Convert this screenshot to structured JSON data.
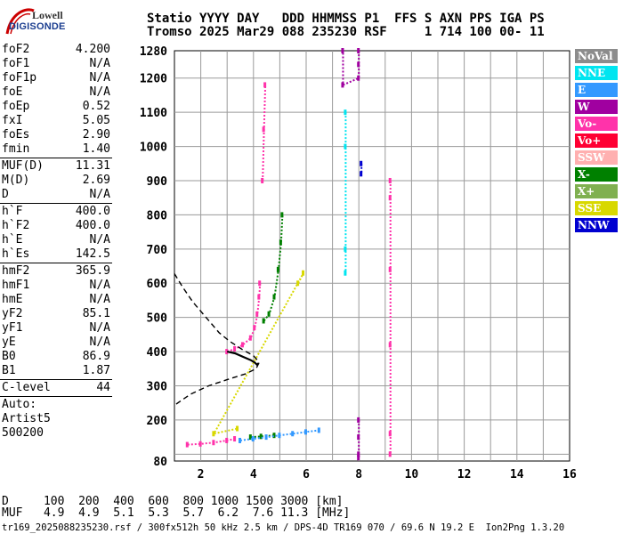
{
  "logo": {
    "line1": "Lowell",
    "line2": "DIGISONDE"
  },
  "header": {
    "line1": "Statio YYYY DAY   DDD HHMMSS P1  FFS S AXN PPS IGA PS",
    "line2": "Tromso 2025 Mar29 088 235230 RSF     1 714 100 00- 11"
  },
  "params": [
    {
      "label": "foF2",
      "value": "4.200"
    },
    {
      "label": "foF1",
      "value": "N/A"
    },
    {
      "label": "foF1p",
      "value": "N/A"
    },
    {
      "label": "foE",
      "value": "N/A"
    },
    {
      "label": "foEp",
      "value": "0.52"
    },
    {
      "label": "fxI",
      "value": "5.05"
    },
    {
      "label": "foEs",
      "value": "2.90"
    },
    {
      "label": "fmin",
      "value": "1.40"
    },
    {
      "sep": true
    },
    {
      "label": "MUF(D)",
      "value": "11.31"
    },
    {
      "label": "M(D)",
      "value": "2.69"
    },
    {
      "label": "D",
      "value": "N/A"
    },
    {
      "sep": true
    },
    {
      "label": "h`F",
      "value": "400.0"
    },
    {
      "label": "h`F2",
      "value": "400.0"
    },
    {
      "label": "h`E",
      "value": "N/A"
    },
    {
      "label": "h`Es",
      "value": "142.5"
    },
    {
      "sep": true
    },
    {
      "label": "hmF2",
      "value": "365.9"
    },
    {
      "label": "hmF1",
      "value": "N/A"
    },
    {
      "label": "hmE",
      "value": "N/A"
    },
    {
      "label": "yF2",
      "value": "85.1"
    },
    {
      "label": "yF1",
      "value": "N/A"
    },
    {
      "label": "yE",
      "value": "N/A"
    },
    {
      "label": "B0",
      "value": "86.9"
    },
    {
      "label": "B1",
      "value": "1.87"
    },
    {
      "sep": true
    },
    {
      "label": "C-level",
      "value": "44"
    },
    {
      "sep": true
    },
    {
      "text": "Auto:"
    },
    {
      "text": "Artist5"
    },
    {
      "text": "500200"
    }
  ],
  "legend": [
    {
      "label": "NoVal",
      "color": "#8c8c8c"
    },
    {
      "label": "NNE",
      "color": "#00e5f0"
    },
    {
      "label": "E",
      "color": "#3399ff"
    },
    {
      "label": "W",
      "color": "#a000a0"
    },
    {
      "label": "Vo-",
      "color": "#ff33aa"
    },
    {
      "label": "Vo+",
      "color": "#ff0033"
    },
    {
      "label": "SSW",
      "color": "#ffb0b0"
    },
    {
      "label": "X-",
      "color": "#008000"
    },
    {
      "label": "X+",
      "color": "#80b050"
    },
    {
      "label": "SSE",
      "color": "#d8d800"
    },
    {
      "label": "NNW",
      "color": "#0000d0"
    }
  ],
  "bottom": {
    "line1": "D     100  200  400  600  800 1000 1500 3000 [km]",
    "line2": "MUF   4.9  4.9  5.1  5.3  5.7  6.2  7.6 11.3 [MHz]",
    "line3": "tr169_2025088235230.rsf / 300fx512h 50 kHz 2.5 km / DPS-4D TR169 070 / 69.6 N 19.2 E  Ion2Png 1.3.20"
  },
  "chart_data": {
    "type": "scatter",
    "xlim": [
      1,
      16
    ],
    "ylim": [
      80,
      1280
    ],
    "x_ticks": [
      2,
      4,
      6,
      8,
      10,
      12,
      14,
      16
    ],
    "y_ticks": [
      80,
      200,
      300,
      400,
      500,
      600,
      700,
      800,
      900,
      1000,
      1100,
      1200,
      1280
    ],
    "grid": true,
    "profile": {
      "solid": [
        [
          3.0,
          400
        ],
        [
          3.3,
          395
        ],
        [
          3.6,
          385
        ],
        [
          3.9,
          375
        ],
        [
          4.05,
          368
        ],
        [
          4.13,
          362
        ],
        [
          4.2,
          366
        ]
      ],
      "dashed": [
        [
          1.0,
          628
        ],
        [
          1.3,
          590
        ],
        [
          1.7,
          545
        ],
        [
          2.2,
          500
        ],
        [
          2.7,
          455
        ],
        [
          3.1,
          430
        ],
        [
          3.6,
          405
        ],
        [
          4.0,
          388
        ],
        [
          4.15,
          375
        ],
        [
          4.2,
          366
        ],
        [
          4.1,
          350
        ],
        [
          3.7,
          335
        ],
        [
          3.0,
          318
        ],
        [
          2.3,
          300
        ],
        [
          1.6,
          275
        ],
        [
          1.0,
          243
        ]
      ]
    },
    "echo_traces": [
      {
        "series": "Vo-",
        "points": [
          [
            3.0,
            400
          ],
          [
            3.3,
            408
          ],
          [
            3.6,
            420
          ],
          [
            3.9,
            440
          ],
          [
            4.05,
            470
          ],
          [
            4.15,
            510
          ],
          [
            4.22,
            560
          ],
          [
            4.25,
            600
          ]
        ]
      },
      {
        "series": "Vo-",
        "points": [
          [
            1.5,
            128
          ],
          [
            2.0,
            130
          ],
          [
            2.5,
            134
          ],
          [
            3.0,
            140
          ],
          [
            3.3,
            145
          ]
        ]
      },
      {
        "series": "Vo-",
        "points": [
          [
            4.35,
            900
          ],
          [
            4.4,
            1050
          ],
          [
            4.45,
            1180
          ]
        ]
      },
      {
        "series": "X-",
        "points": [
          [
            4.4,
            490
          ],
          [
            4.6,
            510
          ],
          [
            4.8,
            560
          ],
          [
            4.95,
            640
          ],
          [
            5.05,
            720
          ],
          [
            5.1,
            800
          ]
        ]
      },
      {
        "series": "X-",
        "points": [
          [
            3.9,
            150
          ],
          [
            4.3,
            152
          ],
          [
            4.8,
            155
          ]
        ]
      },
      {
        "series": "E",
        "points": [
          [
            3.5,
            140
          ],
          [
            4.0,
            145
          ],
          [
            4.5,
            150
          ],
          [
            5.0,
            155
          ],
          [
            5.5,
            160
          ],
          [
            6.0,
            165
          ],
          [
            6.5,
            170
          ]
        ]
      },
      {
        "series": "NNE",
        "points": [
          [
            7.5,
            1100
          ],
          [
            7.5,
            1000
          ],
          [
            7.5,
            700
          ],
          [
            7.5,
            630
          ]
        ]
      },
      {
        "series": "W",
        "points": [
          [
            8.0,
            200
          ],
          [
            8.0,
            150
          ],
          [
            8.0,
            100
          ],
          [
            8.0,
            90
          ]
        ]
      },
      {
        "series": "W",
        "points": [
          [
            8.0,
            1280
          ],
          [
            8.0,
            1240
          ],
          [
            8.0,
            1200
          ],
          [
            7.4,
            1180
          ],
          [
            7.4,
            1280
          ]
        ]
      },
      {
        "series": "Vo-",
        "points": [
          [
            9.2,
            900
          ],
          [
            9.2,
            850
          ],
          [
            9.2,
            640
          ],
          [
            9.2,
            420
          ],
          [
            9.2,
            160
          ],
          [
            9.2,
            100
          ]
        ]
      },
      {
        "series": "NNW",
        "points": [
          [
            8.1,
            950
          ],
          [
            8.1,
            920
          ]
        ]
      },
      {
        "series": "SSE",
        "points": [
          [
            5.7,
            600
          ],
          [
            5.9,
            630
          ],
          [
            2.5,
            160
          ],
          [
            3.4,
            175
          ]
        ]
      }
    ]
  }
}
